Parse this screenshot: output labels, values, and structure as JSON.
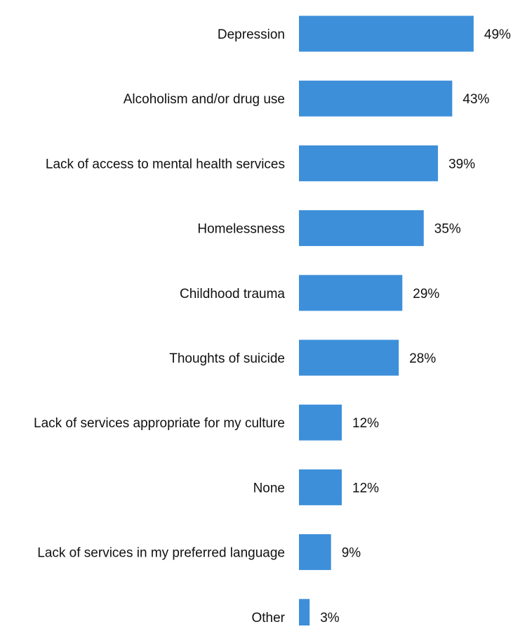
{
  "chart_data": {
    "type": "bar",
    "orientation": "horizontal",
    "categories": [
      "Depression",
      "Alcoholism and/or drug use",
      "Lack of access to mental health services",
      "Homelessness",
      "Childhood trauma",
      "Thoughts of suicide",
      "Lack of services appropriate for my culture",
      "None",
      "Lack of services in my preferred language",
      "Other"
    ],
    "values": [
      49,
      43,
      39,
      35,
      29,
      28,
      12,
      12,
      9,
      3
    ],
    "data_labels": [
      "49%",
      "43%",
      "39%",
      "35%",
      "29%",
      "28%",
      "12%",
      "12%",
      "9%",
      "3%"
    ],
    "title": "",
    "xlabel": "",
    "ylabel": "",
    "grid": false,
    "legend": "none",
    "bar_color": "#3D8FD9"
  }
}
